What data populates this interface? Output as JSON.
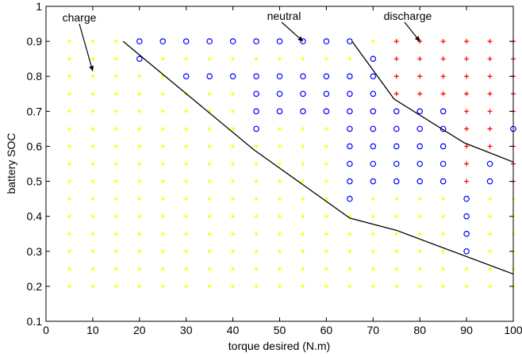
{
  "chart_data": {
    "type": "scatter",
    "xlabel": "torque desired (N.m)",
    "ylabel": "battery SOC",
    "xlim": [
      0,
      100
    ],
    "ylim": [
      0.1,
      1
    ],
    "x_ticks": [
      0,
      10,
      20,
      30,
      40,
      50,
      60,
      70,
      80,
      90,
      100
    ],
    "y_ticks": [
      0.1,
      0.2,
      0.3,
      0.4,
      0.5,
      0.6,
      0.7,
      0.8,
      0.9,
      1
    ],
    "grid": false,
    "x_grid_values": [
      5,
      10,
      15,
      20,
      25,
      30,
      35,
      40,
      45,
      50,
      55,
      60,
      65,
      70,
      75,
      80,
      85,
      90,
      95,
      100
    ],
    "soc_grid_values": [
      0.2,
      0.25,
      0.3,
      0.35,
      0.4,
      0.45,
      0.5,
      0.55,
      0.6,
      0.65,
      0.7,
      0.75,
      0.8,
      0.85,
      0.9
    ],
    "series": [
      {
        "key": "charge",
        "marker": "dot",
        "color": "#ffff00"
      },
      {
        "key": "neutral",
        "marker": "circle",
        "color": "#0000ff"
      },
      {
        "key": "discharge",
        "marker": "plus",
        "color": "#ff0000"
      }
    ],
    "regions": {
      "neutral": [
        [
          20,
          0.9
        ],
        [
          25,
          0.9
        ],
        [
          30,
          0.9
        ],
        [
          35,
          0.9
        ],
        [
          40,
          0.9
        ],
        [
          45,
          0.9
        ],
        [
          50,
          0.9
        ],
        [
          55,
          0.9
        ],
        [
          60,
          0.9
        ],
        [
          65,
          0.9
        ],
        [
          20,
          0.85
        ],
        [
          70,
          0.85
        ],
        [
          30,
          0.8
        ],
        [
          35,
          0.8
        ],
        [
          40,
          0.8
        ],
        [
          45,
          0.8
        ],
        [
          50,
          0.8
        ],
        [
          55,
          0.8
        ],
        [
          60,
          0.8
        ],
        [
          65,
          0.8
        ],
        [
          70,
          0.8
        ],
        [
          45,
          0.75
        ],
        [
          50,
          0.75
        ],
        [
          55,
          0.75
        ],
        [
          60,
          0.75
        ],
        [
          65,
          0.75
        ],
        [
          70,
          0.75
        ],
        [
          45,
          0.7
        ],
        [
          50,
          0.7
        ],
        [
          55,
          0.7
        ],
        [
          60,
          0.7
        ],
        [
          65,
          0.7
        ],
        [
          70,
          0.7
        ],
        [
          75,
          0.7
        ],
        [
          80,
          0.7
        ],
        [
          85,
          0.7
        ],
        [
          45,
          0.65
        ],
        [
          65,
          0.65
        ],
        [
          70,
          0.65
        ],
        [
          75,
          0.65
        ],
        [
          80,
          0.65
        ],
        [
          85,
          0.65
        ],
        [
          100,
          0.65
        ],
        [
          65,
          0.6
        ],
        [
          70,
          0.6
        ],
        [
          75,
          0.6
        ],
        [
          80,
          0.6
        ],
        [
          85,
          0.6
        ],
        [
          65,
          0.55
        ],
        [
          70,
          0.55
        ],
        [
          75,
          0.55
        ],
        [
          80,
          0.55
        ],
        [
          85,
          0.55
        ],
        [
          95,
          0.55
        ],
        [
          65,
          0.5
        ],
        [
          70,
          0.5
        ],
        [
          75,
          0.5
        ],
        [
          80,
          0.5
        ],
        [
          85,
          0.5
        ],
        [
          95,
          0.5
        ],
        [
          65,
          0.45
        ],
        [
          90,
          0.45
        ],
        [
          90,
          0.4
        ],
        [
          90,
          0.35
        ],
        [
          90,
          0.3
        ]
      ],
      "discharge": [
        [
          75,
          0.9
        ],
        [
          80,
          0.9
        ],
        [
          85,
          0.9
        ],
        [
          90,
          0.9
        ],
        [
          95,
          0.9
        ],
        [
          100,
          0.9
        ],
        [
          75,
          0.85
        ],
        [
          80,
          0.85
        ],
        [
          85,
          0.85
        ],
        [
          90,
          0.85
        ],
        [
          95,
          0.85
        ],
        [
          100,
          0.85
        ],
        [
          75,
          0.8
        ],
        [
          80,
          0.8
        ],
        [
          85,
          0.8
        ],
        [
          90,
          0.8
        ],
        [
          95,
          0.8
        ],
        [
          100,
          0.8
        ],
        [
          75,
          0.75
        ],
        [
          80,
          0.75
        ],
        [
          85,
          0.75
        ],
        [
          90,
          0.75
        ],
        [
          95,
          0.75
        ],
        [
          100,
          0.75
        ],
        [
          90,
          0.7
        ],
        [
          95,
          0.7
        ],
        [
          100,
          0.7
        ],
        [
          90,
          0.65
        ],
        [
          95,
          0.65
        ],
        [
          90,
          0.6
        ],
        [
          95,
          0.6
        ],
        [
          100,
          0.6
        ],
        [
          90,
          0.55
        ],
        [
          100,
          0.55
        ],
        [
          90,
          0.5
        ],
        [
          100,
          0.5
        ]
      ]
    },
    "boundary_lines": [
      [
        [
          16.5,
          0.9
        ],
        [
          44.5,
          0.59
        ],
        [
          65,
          0.395
        ],
        [
          75,
          0.36
        ],
        [
          100,
          0.235
        ]
      ],
      [
        [
          65.5,
          0.9
        ],
        [
          74.5,
          0.735
        ],
        [
          89.5,
          0.61
        ],
        [
          100,
          0.555
        ]
      ]
    ],
    "annotations": [
      {
        "text": "charge",
        "arrow_to": [
          10,
          0.815
        ]
      },
      {
        "text": "neutral",
        "arrow_to": [
          55,
          0.9
        ]
      },
      {
        "text": "discharge",
        "arrow_to": [
          80,
          0.9
        ]
      }
    ]
  }
}
